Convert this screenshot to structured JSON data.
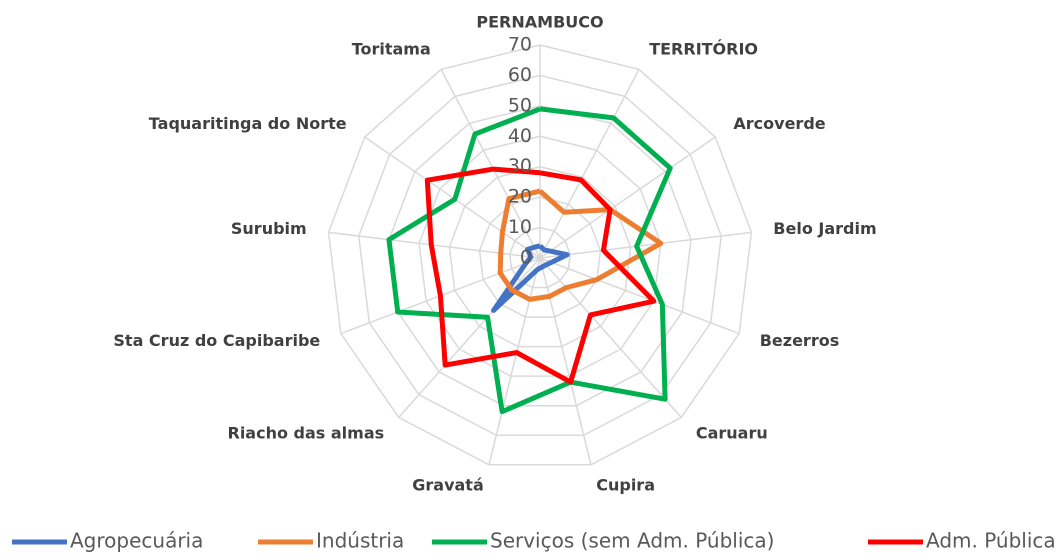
{
  "chart_data": {
    "type": "radar",
    "categories": [
      "PERNAMBUCO",
      "TERRITÓRIO",
      "Arcoverde",
      "Belo Jardim",
      "Bezerros",
      "Caruaru",
      "Cupira",
      "Gravatá",
      "Riacho das almas",
      "Sta Cruz do Capibaribe",
      "Surubim",
      "Taquaritinga do Norte",
      "Toritama"
    ],
    "series": [
      {
        "name": "Agropecuária",
        "color": "#4472c4",
        "values": [
          4,
          3,
          4,
          9,
          4,
          3,
          3,
          4,
          23,
          5,
          3,
          5,
          4
        ]
      },
      {
        "name": "Indústria",
        "color": "#ed7d31",
        "values": [
          22,
          17,
          28,
          40,
          20,
          13,
          13,
          14,
          14,
          14,
          13,
          15,
          22
        ]
      },
      {
        "name": "Serviços (sem Adm. Pública)",
        "color": "#00b050",
        "values": [
          49,
          52,
          52,
          32,
          43,
          62,
          42,
          52,
          26,
          50,
          50,
          34,
          46
        ]
      },
      {
        "name": "Adm. Pública",
        "color": "#ff0000",
        "values": [
          28,
          29,
          28,
          21,
          40,
          25,
          42,
          32,
          47,
          35,
          36,
          45,
          33
        ]
      }
    ],
    "ylim": [
      0,
      70
    ],
    "yticks": [
      0,
      10,
      20,
      30,
      40,
      50,
      60,
      70
    ],
    "grid": true,
    "legend": "bottom"
  }
}
